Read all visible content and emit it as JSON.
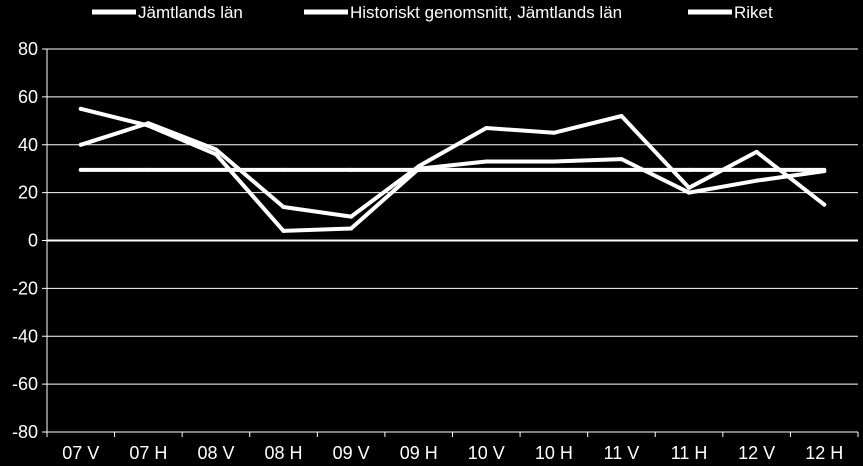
{
  "chart_data": {
    "type": "line",
    "title": "",
    "xlabel": "",
    "ylabel": "",
    "ylim": [
      -80,
      80
    ],
    "yticks": [
      80,
      60,
      40,
      20,
      0,
      -20,
      -40,
      -60,
      -80
    ],
    "grid": true,
    "legend_position": "top",
    "categories": [
      "07 V",
      "07 H",
      "08 V",
      "08 H",
      "09 V",
      "09 H",
      "10 V",
      "10 H",
      "11 V",
      "11 H",
      "12 V",
      "12 H"
    ],
    "series": [
      {
        "name": "Jämtlands län",
        "color": "#ffffff",
        "values": [
          40,
          49,
          38,
          14,
          10,
          31,
          47,
          45,
          52,
          22,
          37,
          15
        ]
      },
      {
        "name": "Historiskt genomsnitt, Jämtlands län",
        "color": "#ffffff",
        "values": [
          29.5,
          29.5,
          29.5,
          29.5,
          29.5,
          29.5,
          29.5,
          29.5,
          29.5,
          29.5,
          29.5,
          29.5
        ]
      },
      {
        "name": "Riket",
        "color": "#ffffff",
        "values": [
          55,
          48,
          36,
          4,
          5,
          30,
          33,
          33,
          34,
          20,
          25,
          29
        ]
      }
    ]
  }
}
